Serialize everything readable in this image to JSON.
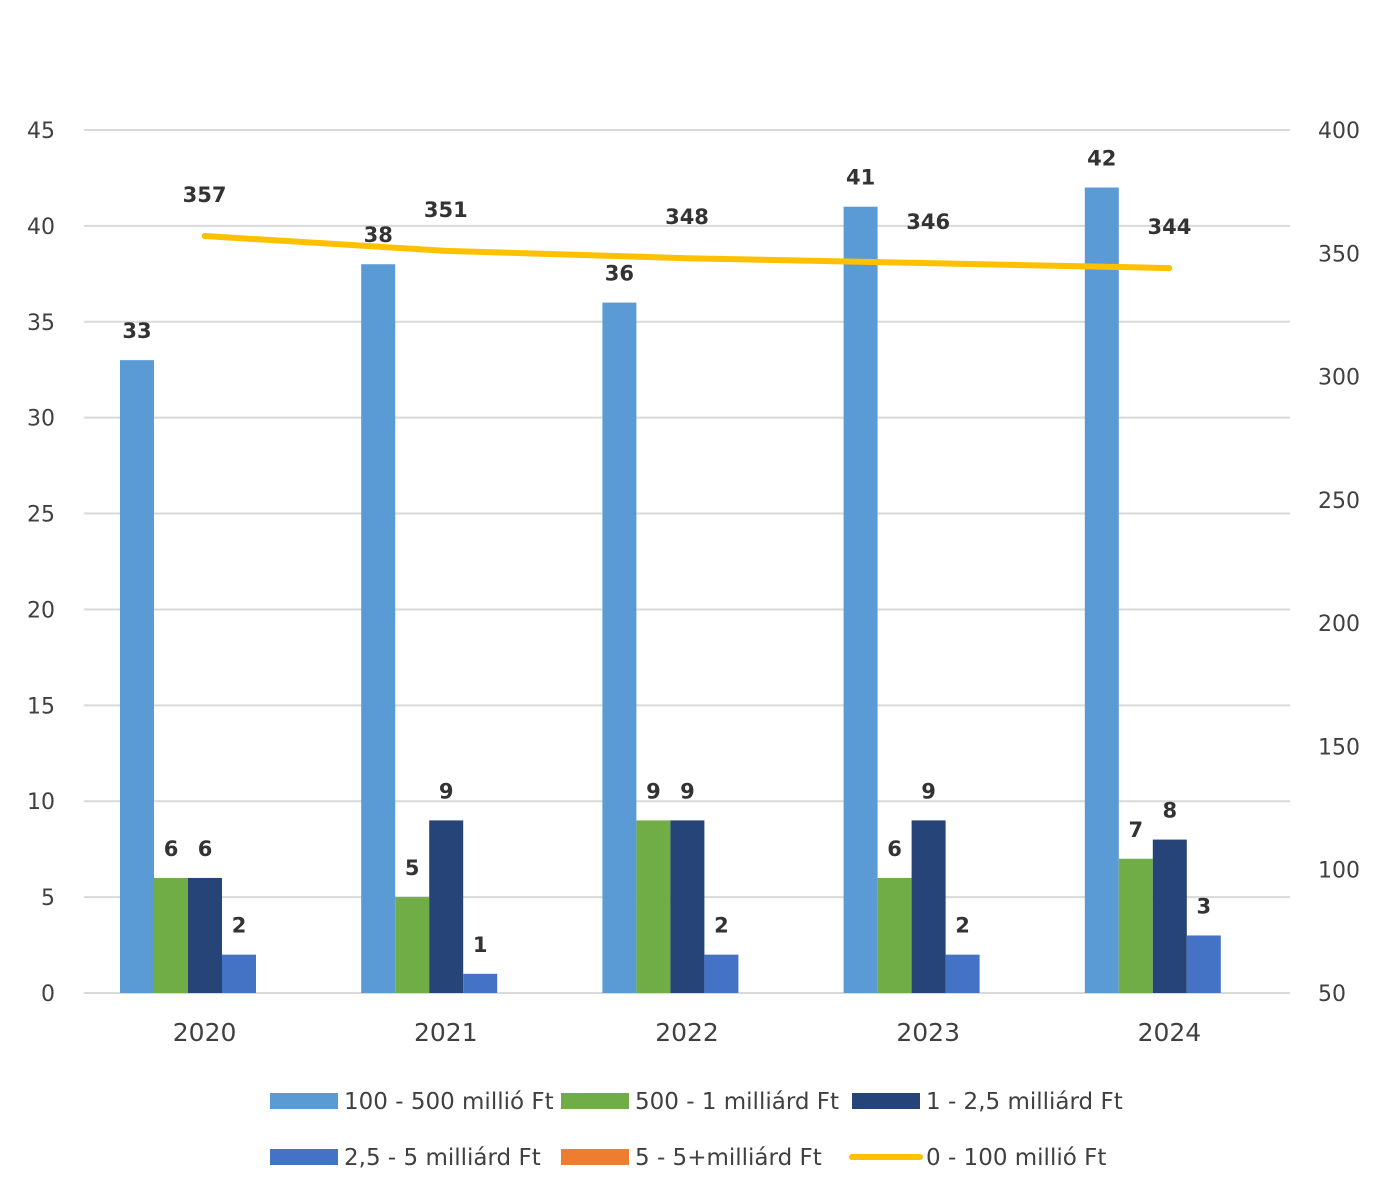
{
  "chart_data": {
    "type": "bar",
    "title": "",
    "categories": [
      "2020",
      "2021",
      "2022",
      "2023",
      "2024"
    ],
    "series": [
      {
        "name": "100 - 500 millió Ft",
        "kind": "bar",
        "axis": "left",
        "color": "#5b9bd5",
        "values": [
          33,
          38,
          36,
          41,
          42
        ]
      },
      {
        "name": "500 - 1 milliárd Ft",
        "kind": "bar",
        "axis": "left",
        "color": "#70ad47",
        "values": [
          6,
          5,
          9,
          6,
          7
        ]
      },
      {
        "name": "1 - 2,5 milliárd Ft",
        "kind": "bar",
        "axis": "left",
        "color": "#264478",
        "values": [
          6,
          9,
          9,
          9,
          8
        ]
      },
      {
        "name": "2,5 - 5 milliárd Ft",
        "kind": "bar",
        "axis": "left",
        "color": "#4472c4",
        "values": [
          2,
          1,
          2,
          2,
          3
        ]
      },
      {
        "name": "5 - 5+milliárd Ft",
        "kind": "bar",
        "axis": "left",
        "color": "#ed7d31",
        "values": [
          0,
          0,
          0,
          0,
          0
        ]
      },
      {
        "name": "0 - 100 millió Ft",
        "kind": "line",
        "axis": "right",
        "color": "#ffc000",
        "values": [
          357,
          351,
          348,
          346,
          344
        ]
      }
    ],
    "y_left": {
      "min": 0,
      "max": 45,
      "step": 5,
      "ticks": [
        "0",
        "5",
        "10",
        "15",
        "20",
        "25",
        "30",
        "35",
        "40",
        "45"
      ]
    },
    "y_right": {
      "min": 50,
      "max": 400,
      "step": 50,
      "ticks": [
        "50",
        "100",
        "150",
        "200",
        "250",
        "300",
        "350",
        "400"
      ]
    },
    "gridlines": true,
    "legend_position": "bottom",
    "legend_rows": [
      [
        0,
        1,
        2
      ],
      [
        3,
        4,
        5
      ]
    ]
  }
}
